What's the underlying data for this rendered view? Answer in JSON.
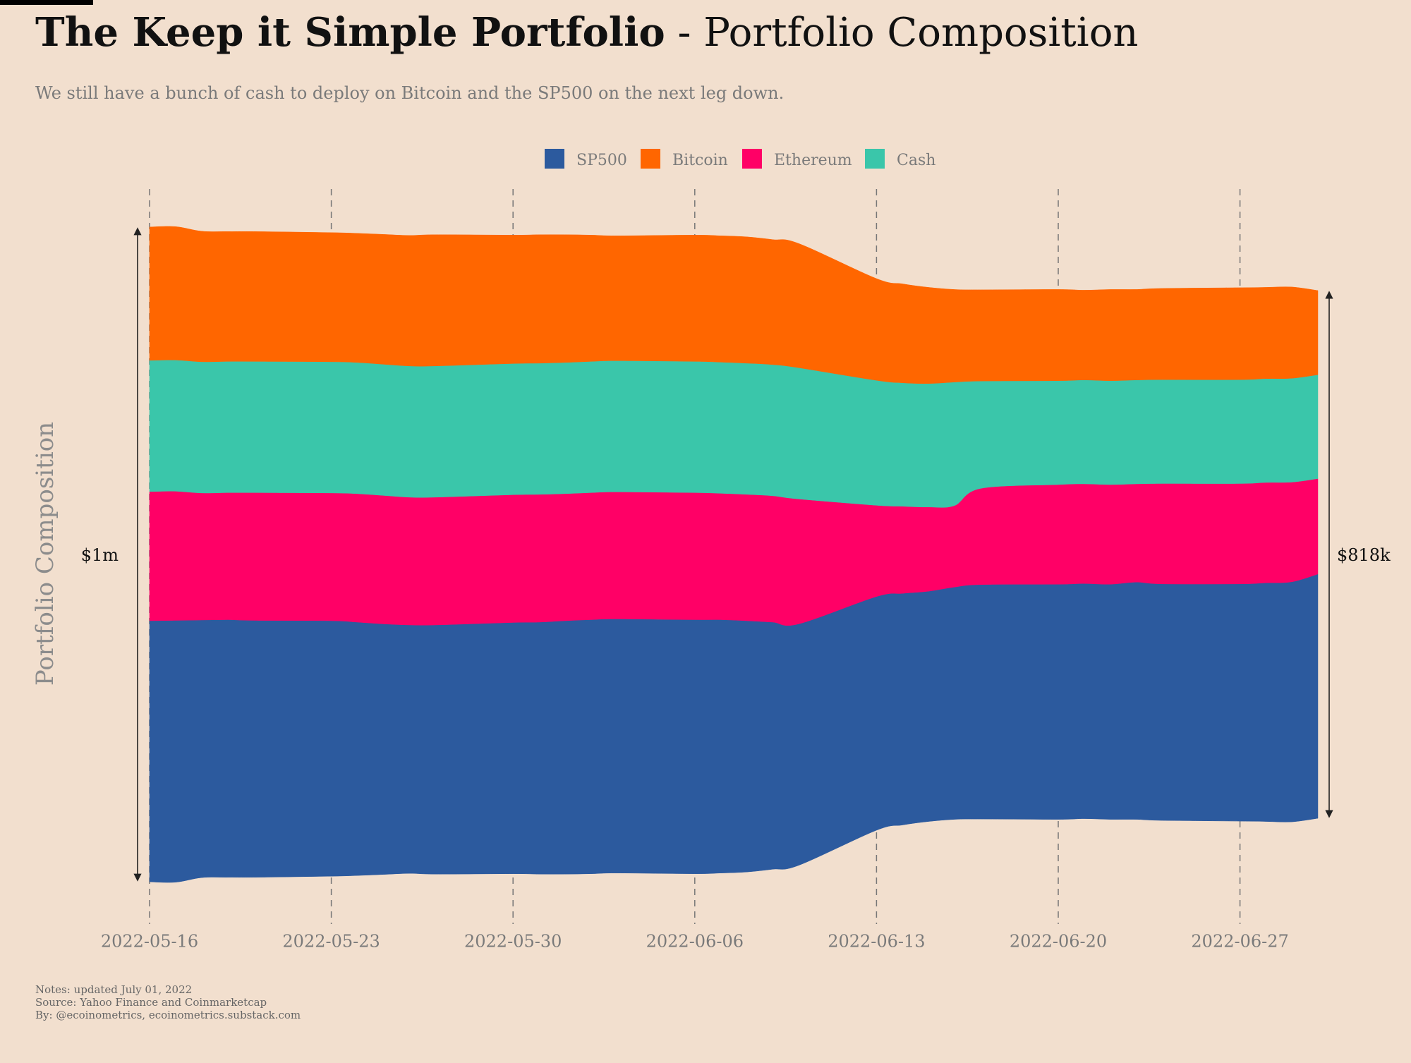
{
  "header": {
    "title_bold": "The Keep it Simple Portfolio",
    "title_rest": " - Portfolio Composition",
    "subtitle": "We still have a bunch of cash to deploy on Bitcoin and the SP500 on the next leg down."
  },
  "colors": {
    "background": "#f2dfce",
    "SP500": "#2c5a9e",
    "Bitcoin": "#ff6600",
    "Ethereum": "#ff0066",
    "Cash": "#3ac6aa"
  },
  "footer": {
    "notes": "Notes: updated July 01, 2022",
    "source": "Source: Yahoo Finance and Coinmarketcap",
    "by": "By: @ecoinometrics, ecoinometrics.substack.com"
  },
  "chart_data": {
    "type": "area",
    "stacked": true,
    "centered": true,
    "ylabel": "Portfolio Composition",
    "legend": [
      "SP500",
      "Bitcoin",
      "Ethereum",
      "Cash"
    ],
    "legend_position": "top-center",
    "stack_order_bottom_to_top": [
      "SP500",
      "Ethereum",
      "Cash",
      "Bitcoin"
    ],
    "x_ticks": [
      "2022-05-16",
      "2022-05-23",
      "2022-05-30",
      "2022-06-06",
      "2022-06-13",
      "2022-06-20",
      "2022-06-27"
    ],
    "x": [
      "2022-05-16",
      "2022-05-17",
      "2022-05-18",
      "2022-05-19",
      "2022-05-20",
      "2022-05-23",
      "2022-05-24",
      "2022-05-25",
      "2022-05-26",
      "2022-05-27",
      "2022-05-30",
      "2022-05-31",
      "2022-06-01",
      "2022-06-02",
      "2022-06-03",
      "2022-06-06",
      "2022-06-07",
      "2022-06-08",
      "2022-06-09",
      "2022-06-10",
      "2022-06-13",
      "2022-06-14",
      "2022-06-15",
      "2022-06-16",
      "2022-06-17",
      "2022-06-20",
      "2022-06-21",
      "2022-06-22",
      "2022-06-23",
      "2022-06-24",
      "2022-06-27",
      "2022-06-28",
      "2022-06-29",
      "2022-06-30"
    ],
    "series": [
      {
        "name": "SP500",
        "values": [
          372,
          373,
          367,
          367,
          366,
          364,
          361,
          357,
          354,
          355,
          358,
          359,
          361,
          362,
          362,
          362,
          361,
          358,
          352,
          344,
          333,
          330,
          328,
          331,
          334,
          335,
          335,
          335,
          338,
          337,
          338,
          340,
          342,
          348
        ]
      },
      {
        "name": "Ethereum",
        "values": [
          184,
          184,
          181,
          181,
          182,
          182,
          183,
          183,
          182,
          182,
          182,
          182,
          181,
          181,
          181,
          181,
          180,
          180,
          180,
          178,
          130,
          124,
          120,
          116,
          137,
          142,
          142,
          142,
          140,
          143,
          143,
          143,
          142,
          136
        ]
      },
      {
        "name": "Cash",
        "values": [
          187,
          187,
          187,
          187,
          187,
          187,
          187,
          187,
          187,
          187,
          187,
          187,
          187,
          187,
          187,
          187,
          187,
          187,
          187,
          187,
          178,
          176,
          176,
          176,
          153,
          148,
          148,
          148,
          148,
          148,
          148,
          148,
          148,
          148
        ]
      },
      {
        "name": "Bitcoin",
        "values": [
          190,
          190,
          186,
          185,
          185,
          184,
          184,
          185,
          186,
          187,
          183,
          183,
          182,
          180,
          178,
          180,
          180,
          180,
          178,
          177,
          145,
          141,
          137,
          132,
          130,
          130,
          128,
          130,
          129,
          130,
          131,
          130,
          130,
          120
        ]
      }
    ],
    "annotations": {
      "start": "$1m",
      "end": "$818k"
    }
  }
}
